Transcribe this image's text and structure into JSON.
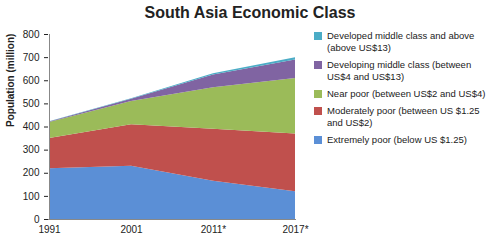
{
  "chart_data": {
    "type": "area",
    "title": "South Asia Economic Class",
    "y_label": "Population (million)",
    "categories": [
      "1991",
      "2001",
      "2011*",
      "2017*"
    ],
    "series": [
      {
        "name": "Extremely poor (below US $1.25)",
        "color": "#5b8fd6",
        "values": [
          220,
          230,
          165,
          120
        ]
      },
      {
        "name": "Moderately poor (between US $1.25 and US$2)",
        "color": "#c0504d",
        "values": [
          130,
          180,
          225,
          250
        ]
      },
      {
        "name": "Near poor (between US$2 and US$4)",
        "color": "#9bbb59",
        "values": [
          70,
          100,
          180,
          240
        ]
      },
      {
        "name": "Developing middle class (between US$4 and US$13)",
        "color": "#8064a2",
        "values": [
          2,
          10,
          55,
          80
        ]
      },
      {
        "name": "Developed middle class and above (above US$13)",
        "color": "#4bacc6",
        "values": [
          1,
          2,
          5,
          10
        ]
      }
    ],
    "ylim": [
      0,
      800
    ],
    "yticks": [
      0,
      100,
      200,
      300,
      400,
      500,
      600,
      700,
      800
    ],
    "stacked": true,
    "legend": "right",
    "grid": false
  }
}
